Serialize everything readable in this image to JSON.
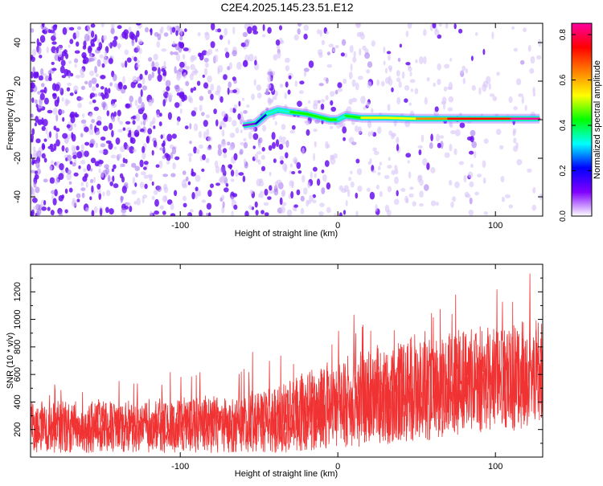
{
  "title": "C2E4.2025.145.23.51.E12",
  "colors": {
    "snr_trace": "#f03232",
    "scatter_faint": "#d8c4f8",
    "scatter_mid": "#a070f0",
    "scatter_strong": "#6a10f0",
    "colorbar_stops": [
      "#ffffff",
      "#8000ff",
      "#0000ff",
      "#00ffff",
      "#00ff00",
      "#ffff00",
      "#ff8000",
      "#ff0000",
      "#ff00a0"
    ]
  },
  "chart_data": [
    {
      "type": "heatmap",
      "title": "C2E4.2025.145.23.51.E12",
      "xlabel": "Height of straight line (km)",
      "ylabel": "Frequency (Hz)",
      "xlim": [
        -195,
        130
      ],
      "ylim": [
        -50,
        50
      ],
      "xticks": [
        -100,
        0,
        100
      ],
      "xtick_labels": [
        "-100",
        "0",
        "100"
      ],
      "yticks": [
        -40,
        -20,
        0,
        20,
        40
      ],
      "ytick_labels": [
        "-40",
        "-20",
        "0",
        "20",
        "40"
      ],
      "grid": false,
      "colorbar": {
        "label": "Normalized spectral amplitude",
        "range": [
          0,
          0.85
        ],
        "ticks": [
          0.0,
          0.2,
          0.4,
          0.6,
          0.8
        ],
        "tick_labels": [
          "0.0",
          "0.2",
          "0.4",
          "0.6",
          "0.8"
        ]
      },
      "ridge": {
        "description": "dominant narrow-band line",
        "points": [
          [
            -60,
            -3
          ],
          [
            -52,
            -2
          ],
          [
            -45,
            3
          ],
          [
            -38,
            5
          ],
          [
            -30,
            4
          ],
          [
            -20,
            3
          ],
          [
            -10,
            1
          ],
          [
            -5,
            0
          ],
          [
            0,
            0
          ],
          [
            5,
            2
          ],
          [
            15,
            1
          ],
          [
            30,
            1
          ],
          [
            50,
            0.5
          ],
          [
            70,
            0.5
          ],
          [
            90,
            0.5
          ],
          [
            110,
            0.5
          ],
          [
            128,
            0.5
          ]
        ],
        "amplitude": [
          0.15,
          0.2,
          0.3,
          0.35,
          0.4,
          0.42,
          0.45,
          0.4,
          0.35,
          0.45,
          0.5,
          0.55,
          0.6,
          0.7,
          0.75,
          0.8,
          0.85
        ]
      }
    },
    {
      "type": "line",
      "xlabel": "Height of straight line (km)",
      "ylabel": "SNR (10 * v/v)",
      "xlim": [
        -195,
        130
      ],
      "ylim": [
        0,
        1400
      ],
      "xticks": [
        -100,
        0,
        100
      ],
      "xtick_labels": [
        "-100",
        "0",
        "100"
      ],
      "yticks": [
        200,
        400,
        600,
        800,
        1000,
        1200
      ],
      "ytick_labels": [
        "200",
        "400",
        "600",
        "800",
        "1000",
        "1200"
      ],
      "grid": false,
      "series": [
        {
          "x": [
            -195,
            -180,
            -160,
            -140,
            -120,
            -100,
            -80,
            -60,
            -40,
            -20,
            0,
            20,
            40,
            60,
            80,
            100,
            120,
            130
          ],
          "y_low": [
            30,
            30,
            30,
            30,
            30,
            30,
            30,
            30,
            30,
            40,
            60,
            80,
            100,
            120,
            150,
            180,
            200,
            220
          ],
          "y_mid": [
            240,
            240,
            240,
            245,
            250,
            255,
            260,
            270,
            310,
            360,
            430,
            480,
            520,
            560,
            590,
            620,
            640,
            650
          ],
          "y_high": [
            480,
            560,
            580,
            600,
            620,
            650,
            700,
            760,
            820,
            900,
            1000,
            1080,
            1150,
            1200,
            1250,
            1280,
            1400,
            1300
          ]
        }
      ]
    }
  ]
}
